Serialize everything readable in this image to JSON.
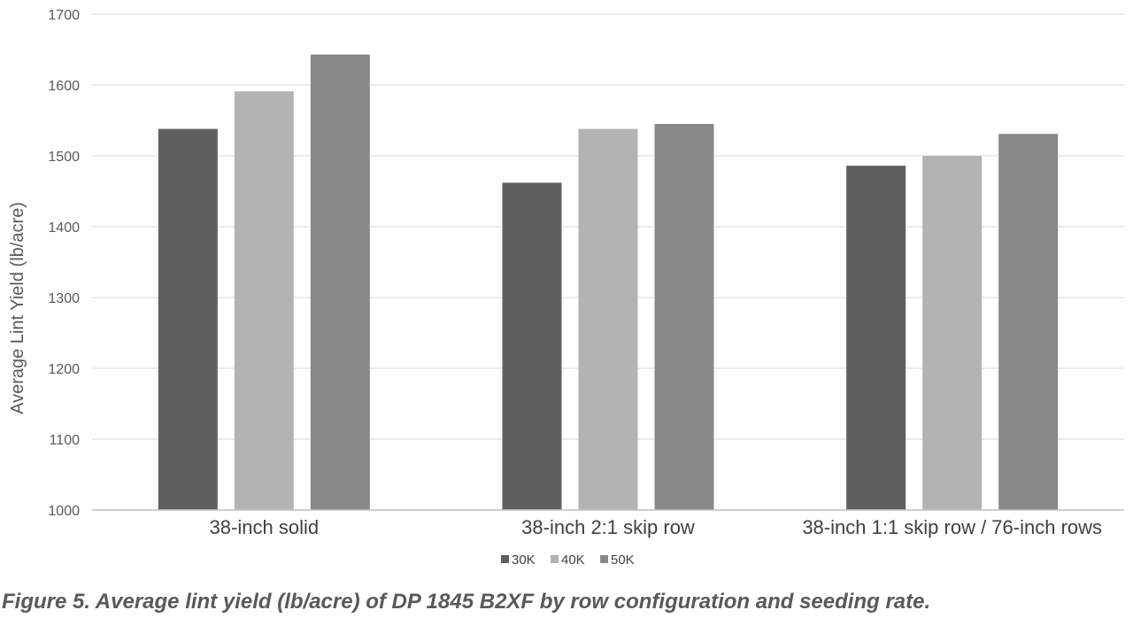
{
  "caption": "Figure 5. Average lint yield (lb/acre) of DP 1845 B2XF by row configuration and seeding rate.",
  "chart_data": {
    "type": "bar",
    "title": "",
    "xlabel": "",
    "ylabel": "Average Lint Yield (lb/acre)",
    "ylim": [
      1000,
      1700
    ],
    "yticks": [
      1000,
      1100,
      1200,
      1300,
      1400,
      1500,
      1600,
      1700
    ],
    "grid": true,
    "legend_position": "bottom",
    "categories": [
      "38-inch solid",
      "38-inch 2:1 skip row",
      "38-inch 1:1 skip row / 76-inch rows"
    ],
    "series": [
      {
        "name": "30K",
        "color": "#5f5f5f",
        "values": [
          1538,
          1462,
          1486
        ]
      },
      {
        "name": "40K",
        "color": "#b3b3b3",
        "values": [
          1591,
          1538,
          1500
        ]
      },
      {
        "name": "50K",
        "color": "#888888",
        "values": [
          1643,
          1545,
          1531
        ]
      }
    ]
  }
}
